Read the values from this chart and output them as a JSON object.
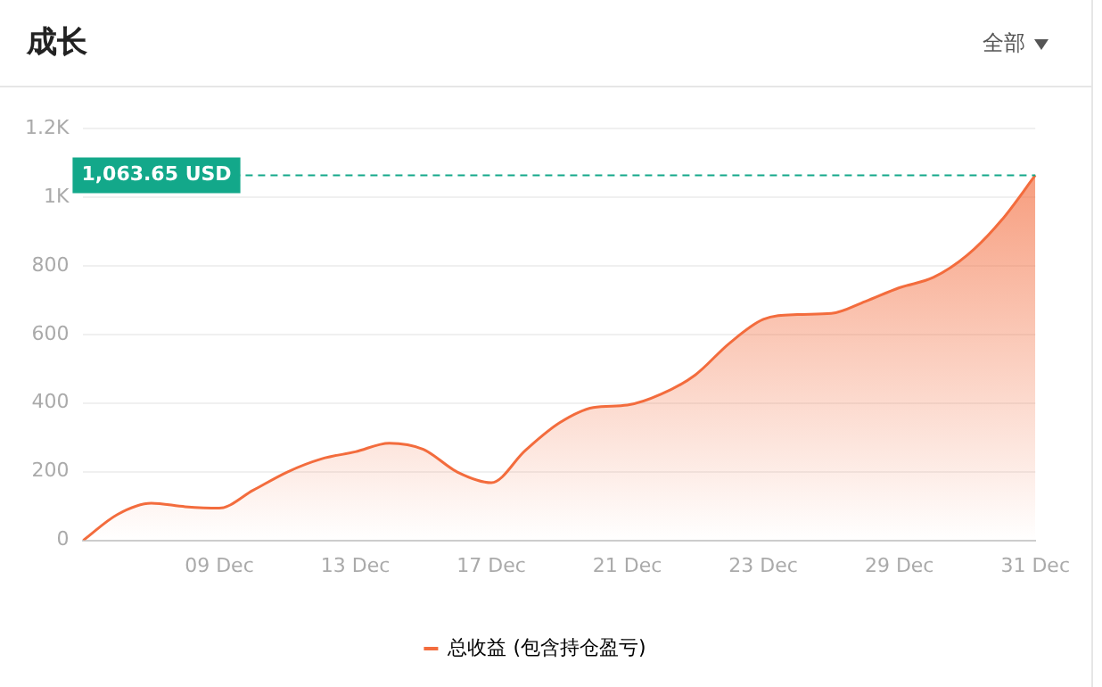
{
  "chart_data": {
    "type": "area",
    "title": "成长",
    "annotations": [
      "全部"
    ],
    "categories": [
      null,
      null,
      null,
      null,
      "09 Dec",
      null,
      null,
      null,
      "13 Dec",
      null,
      null,
      null,
      "17 Dec",
      null,
      null,
      null,
      "21 Dec",
      null,
      null,
      null,
      "23 Dec",
      null,
      null,
      null,
      "29 Dec",
      null,
      null,
      null,
      "31 Dec"
    ],
    "series": [
      {
        "name": "总收益 (包含持仓盈亏)",
        "color": "#f36c3d",
        "values": [
          0,
          75,
          108,
          98,
          94,
          146,
          199,
          237,
          258,
          283,
          265,
          199,
          168,
          262,
          342,
          387,
          394,
          426,
          482,
          574,
          644,
          658,
          661,
          696,
          736,
          766,
          831,
          932,
          1063.65
        ]
      }
    ],
    "ylim": [
      0,
      1200
    ],
    "yticks": [
      0,
      200,
      400,
      600,
      800,
      {
        "value": 1000,
        "label": "1K"
      },
      {
        "value": 1200,
        "label": "1.2K"
      }
    ],
    "ref_lines": [
      {
        "axis": "y",
        "value": 1063.65,
        "label": "1,063.65 USD",
        "color": "#13a88a",
        "line_style": "dashed"
      }
    ],
    "grid": "y",
    "legend": "bottom"
  }
}
